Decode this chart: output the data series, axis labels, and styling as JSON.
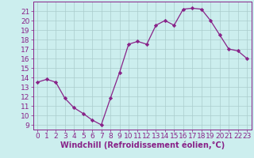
{
  "x": [
    0,
    1,
    2,
    3,
    4,
    5,
    6,
    7,
    8,
    9,
    10,
    11,
    12,
    13,
    14,
    15,
    16,
    17,
    18,
    19,
    20,
    21,
    22,
    23
  ],
  "y": [
    13.5,
    13.8,
    13.5,
    11.8,
    10.8,
    10.2,
    9.5,
    9.0,
    11.8,
    14.5,
    17.5,
    17.8,
    17.5,
    19.5,
    20.0,
    19.5,
    21.2,
    21.3,
    21.2,
    20.0,
    18.5,
    17.0,
    16.8,
    16.0
  ],
  "line_color": "#882288",
  "marker": "D",
  "marker_size": 2.2,
  "bg_color": "#cceeee",
  "grid_color": "#aacccc",
  "xlabel": "Windchill (Refroidissement éolien,°C)",
  "xlim": [
    -0.5,
    23.5
  ],
  "ylim": [
    8.5,
    22
  ],
  "yticks": [
    9,
    10,
    11,
    12,
    13,
    14,
    15,
    16,
    17,
    18,
    19,
    20,
    21
  ],
  "xticks": [
    0,
    1,
    2,
    3,
    4,
    5,
    6,
    7,
    8,
    9,
    10,
    11,
    12,
    13,
    14,
    15,
    16,
    17,
    18,
    19,
    20,
    21,
    22,
    23
  ],
  "xlabel_fontsize": 7,
  "tick_fontsize": 6.5,
  "tick_color": "#882288",
  "spine_color": "#882288"
}
